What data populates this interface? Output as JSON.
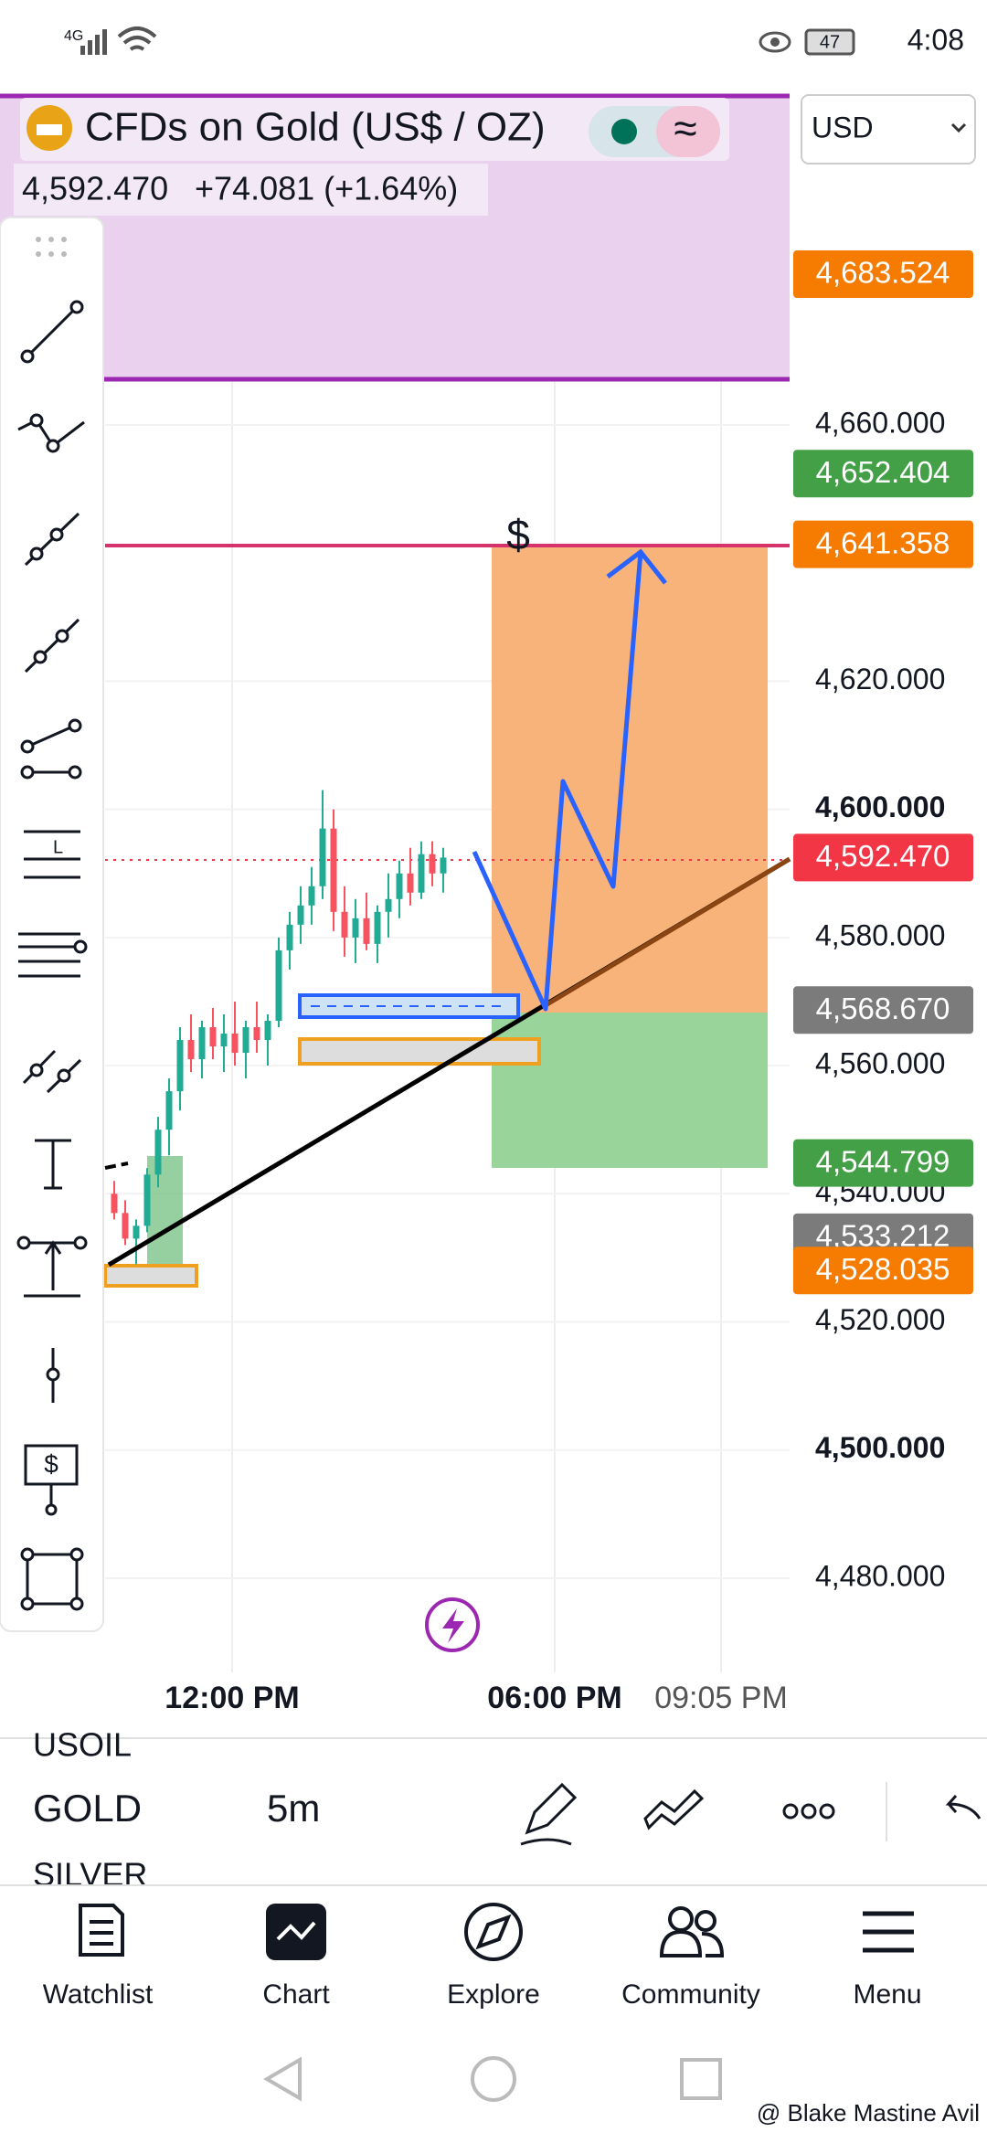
{
  "status_bar": {
    "network": "4G",
    "battery": "47",
    "time": "4:08"
  },
  "header": {
    "title": "CFDs on Gold (US$ / OZ)",
    "price": "4,592.470",
    "change": "+74.081 (+1.64%)",
    "currency": "USD"
  },
  "chart_data": {
    "type": "candlestick",
    "candles": [
      [
        4540,
        4542,
        4536,
        4537
      ],
      [
        4537,
        4539,
        4532,
        4533
      ],
      [
        4533,
        4536,
        4529,
        4535
      ],
      [
        4535,
        4544,
        4534,
        4543
      ],
      [
        4543,
        4552,
        4541,
        4550
      ],
      [
        4550,
        4558,
        4546,
        4556
      ],
      [
        4556,
        4566,
        4553,
        4564
      ],
      [
        4564,
        4568,
        4559,
        4561
      ],
      [
        4561,
        4567,
        4558,
        4566
      ],
      [
        4566,
        4569,
        4561,
        4563
      ],
      [
        4563,
        4568,
        4559,
        4565
      ],
      [
        4565,
        4570,
        4560,
        4562
      ],
      [
        4562,
        4567,
        4558,
        4566
      ],
      [
        4566,
        4570,
        4562,
        4564
      ],
      [
        4564,
        4568,
        4560,
        4567
      ],
      [
        4567,
        4580,
        4566,
        4578
      ],
      [
        4578,
        4584,
        4575,
        4582
      ],
      [
        4582,
        4588,
        4579,
        4585
      ],
      [
        4585,
        4591,
        4582,
        4588
      ],
      [
        4588,
        4603,
        4586,
        4597
      ],
      [
        4597,
        4600,
        4581,
        4584
      ],
      [
        4584,
        4588,
        4577,
        4580
      ],
      [
        4580,
        4586,
        4576,
        4583
      ],
      [
        4583,
        4587,
        4578,
        4579
      ],
      [
        4579,
        4585,
        4576,
        4584
      ],
      [
        4584,
        4590,
        4580,
        4586
      ],
      [
        4586,
        4592,
        4583,
        4590
      ],
      [
        4590,
        4594,
        4585,
        4587
      ],
      [
        4587,
        4595,
        4586,
        4593
      ],
      [
        4593,
        4595,
        4588,
        4590
      ],
      [
        4590,
        4594,
        4587,
        4592.47
      ]
    ],
    "up_color": "#22ab94",
    "down_color": "#f7525f",
    "ylim": [
      4460,
      4710
    ],
    "yticks": [
      {
        "value": 4660,
        "label": "4,660.000"
      },
      {
        "value": 4620,
        "label": "4,620.000"
      },
      {
        "value": 4600,
        "label": "4,600.000"
      },
      {
        "value": 4580,
        "label": "4,580.000"
      },
      {
        "value": 4560,
        "label": "4,560.000"
      },
      {
        "value": 4540,
        "label": "4,540.000"
      },
      {
        "value": 4520,
        "label": "4,520.000"
      },
      {
        "value": 4500,
        "label": "4,500.000"
      },
      {
        "value": 4480,
        "label": "4,480.000"
      }
    ],
    "price_tags": [
      {
        "value": 4683.524,
        "label": "4,683.524",
        "color": "#f57c00"
      },
      {
        "value": 4652.404,
        "label": "4,652.404",
        "color": "#43a047"
      },
      {
        "value": 4641.358,
        "label": "4,641.358",
        "color": "#f57c00"
      },
      {
        "value": 4592.47,
        "label": "4,592.470",
        "color": "#f23645"
      },
      {
        "value": 4568.67,
        "label": "4,568.670",
        "color": "#7b7b7b"
      },
      {
        "value": 4533.212,
        "label": "4,533.212",
        "color": "#7b7b7b"
      },
      {
        "value": 4544.799,
        "label": "4,544.799",
        "color": "#43a047"
      },
      {
        "value": 4528.035,
        "label": "4,528.035",
        "color": "#f57c00"
      }
    ],
    "x_labels": [
      "12:00 PM",
      "06:00 PM",
      "09:05 PM"
    ],
    "annotation": "$"
  },
  "toolbar": {
    "symbols": [
      "USOIL",
      "GOLD",
      "SILVER"
    ],
    "interval": "5m"
  },
  "nav": [
    "Watchlist",
    "Chart",
    "Explore",
    "Community",
    "Menu"
  ],
  "watermark": "@ Blake Mastine Avil"
}
